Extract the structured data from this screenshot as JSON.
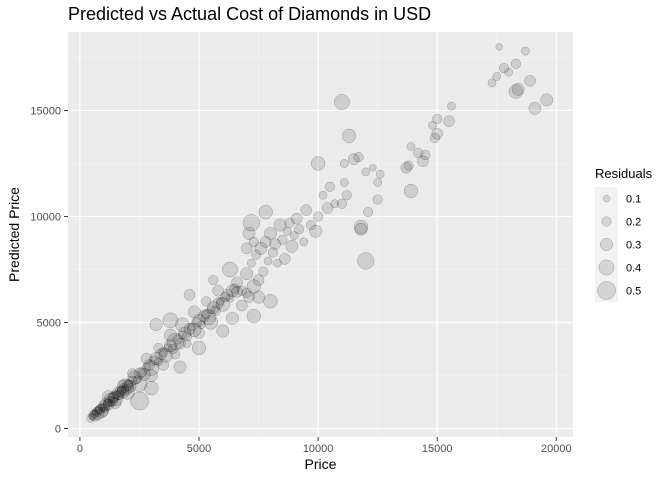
{
  "chart_data": {
    "type": "scatter",
    "title": "Predicted vs Actual Cost of Diamonds in USD",
    "xlabel": "Price",
    "ylabel": "Predicted Price",
    "xlim": [
      -500,
      20700
    ],
    "ylim": [
      -400,
      18700
    ],
    "x_ticks": [
      0,
      5000,
      10000,
      15000,
      20000
    ],
    "y_ticks": [
      0,
      5000,
      10000,
      15000
    ],
    "x_tick_labels": [
      "0",
      "5000",
      "10000",
      "15000",
      "20000"
    ],
    "y_tick_labels": [
      "0",
      "5000",
      "10000",
      "15000"
    ],
    "grid": true,
    "legend": {
      "title": "Residuals",
      "position": "right",
      "entries": [
        {
          "label": "0.1",
          "value": 0.1
        },
        {
          "label": "0.2",
          "value": 0.2
        },
        {
          "label": "0.3",
          "value": 0.3
        },
        {
          "label": "0.4",
          "value": 0.4
        },
        {
          "label": "0.5",
          "value": 0.5
        }
      ]
    },
    "point_color": "#000000",
    "point_alpha": 0.12,
    "points": [
      [
        450,
        480,
        0.15
      ],
      [
        520,
        560,
        0.1
      ],
      [
        560,
        620,
        0.2
      ],
      [
        600,
        700,
        0.15
      ],
      [
        640,
        600,
        0.25
      ],
      [
        680,
        750,
        0.1
      ],
      [
        720,
        800,
        0.2
      ],
      [
        760,
        700,
        0.3
      ],
      [
        800,
        880,
        0.15
      ],
      [
        850,
        900,
        0.2
      ],
      [
        900,
        820,
        0.35
      ],
      [
        950,
        1000,
        0.15
      ],
      [
        1000,
        1050,
        0.25
      ],
      [
        1050,
        980,
        0.2
      ],
      [
        1100,
        1150,
        0.3
      ],
      [
        1150,
        1200,
        0.15
      ],
      [
        1200,
        1120,
        0.25
      ],
      [
        1250,
        1300,
        0.2
      ],
      [
        1300,
        1350,
        0.35
      ],
      [
        1350,
        1280,
        0.15
      ],
      [
        1400,
        1450,
        0.25
      ],
      [
        1450,
        1500,
        0.2
      ],
      [
        1500,
        1420,
        0.4
      ],
      [
        1550,
        1600,
        0.15
      ],
      [
        1600,
        1650,
        0.3
      ],
      [
        1650,
        1580,
        0.2
      ],
      [
        1700,
        1750,
        0.25
      ],
      [
        1750,
        1800,
        0.15
      ],
      [
        1800,
        1720,
        0.3
      ],
      [
        1850,
        1900,
        0.2
      ],
      [
        1900,
        1950,
        0.45
      ],
      [
        1950,
        1880,
        0.2
      ],
      [
        2000,
        2050,
        0.25
      ],
      [
        2050,
        2100,
        0.15
      ],
      [
        2100,
        2000,
        0.3
      ],
      [
        2200,
        2250,
        0.2
      ],
      [
        2300,
        2400,
        0.35
      ],
      [
        2400,
        2300,
        0.15
      ],
      [
        2500,
        2600,
        0.25
      ],
      [
        2600,
        2650,
        0.2
      ],
      [
        2700,
        2550,
        0.3
      ],
      [
        2800,
        2900,
        0.15
      ],
      [
        2900,
        3000,
        0.25
      ],
      [
        3000,
        2850,
        0.4
      ],
      [
        3100,
        3200,
        0.2
      ],
      [
        3200,
        3300,
        0.3
      ],
      [
        3300,
        3150,
        0.15
      ],
      [
        3400,
        3500,
        0.25
      ],
      [
        3500,
        3600,
        0.2
      ],
      [
        3600,
        3450,
        0.35
      ],
      [
        3700,
        3800,
        0.15
      ],
      [
        3800,
        3900,
        0.3
      ],
      [
        3900,
        3750,
        0.2
      ],
      [
        4000,
        4100,
        0.45
      ],
      [
        4100,
        4200,
        0.2
      ],
      [
        4200,
        4000,
        0.25
      ],
      [
        4300,
        4400,
        0.15
      ],
      [
        4400,
        4500,
        0.3
      ],
      [
        4500,
        4350,
        0.2
      ],
      [
        4600,
        4700,
        0.25
      ],
      [
        4700,
        4800,
        0.15
      ],
      [
        4800,
        4650,
        0.35
      ],
      [
        4900,
        5000,
        0.2
      ],
      [
        5000,
        5100,
        0.3
      ],
      [
        5100,
        4900,
        0.15
      ],
      [
        5200,
        5300,
        0.25
      ],
      [
        5300,
        5400,
        0.2
      ],
      [
        5400,
        5250,
        0.4
      ],
      [
        5500,
        5600,
        0.15
      ],
      [
        5600,
        5700,
        0.3
      ],
      [
        5700,
        5550,
        0.2
      ],
      [
        5800,
        5900,
        0.25
      ],
      [
        5900,
        6000,
        0.15
      ],
      [
        6000,
        5850,
        0.35
      ],
      [
        6100,
        6200,
        0.2
      ],
      [
        6200,
        6300,
        0.25
      ],
      [
        6300,
        6150,
        0.15
      ],
      [
        6400,
        6500,
        0.3
      ],
      [
        6500,
        6600,
        0.2
      ],
      [
        6600,
        6450,
        0.25
      ],
      [
        1000,
        800,
        0.2
      ],
      [
        1200,
        1500,
        0.3
      ],
      [
        1500,
        1200,
        0.25
      ],
      [
        1800,
        2100,
        0.15
      ],
      [
        2000,
        1700,
        0.35
      ],
      [
        2200,
        2600,
        0.2
      ],
      [
        2500,
        2100,
        0.4
      ],
      [
        2800,
        3300,
        0.25
      ],
      [
        3000,
        2500,
        0.3
      ],
      [
        3300,
        3800,
        0.2
      ],
      [
        3500,
        3000,
        0.25
      ],
      [
        3800,
        4400,
        0.3
      ],
      [
        4000,
        3500,
        0.2
      ],
      [
        4300,
        4900,
        0.35
      ],
      [
        4500,
        4000,
        0.15
      ],
      [
        4800,
        5500,
        0.3
      ],
      [
        5000,
        4500,
        0.25
      ],
      [
        5300,
        6000,
        0.2
      ],
      [
        5500,
        5000,
        0.35
      ],
      [
        5800,
        6500,
        0.25
      ],
      [
        2500,
        1300,
        0.5
      ],
      [
        3000,
        1900,
        0.35
      ],
      [
        3200,
        4900,
        0.3
      ],
      [
        3800,
        5100,
        0.4
      ],
      [
        4200,
        2900,
        0.3
      ],
      [
        4600,
        6300,
        0.25
      ],
      [
        5000,
        3800,
        0.35
      ],
      [
        5600,
        7000,
        0.2
      ],
      [
        6000,
        4600,
        0.3
      ],
      [
        6300,
        7500,
        0.4
      ],
      [
        6400,
        5200,
        0.3
      ],
      [
        6600,
        6900,
        0.25
      ],
      [
        6800,
        6500,
        0.2
      ],
      [
        7000,
        7300,
        0.3
      ],
      [
        7100,
        6200,
        0.25
      ],
      [
        7200,
        7800,
        0.15
      ],
      [
        7300,
        6700,
        0.35
      ],
      [
        7400,
        8200,
        0.2
      ],
      [
        7500,
        7000,
        0.25
      ],
      [
        7600,
        8500,
        0.3
      ],
      [
        7700,
        7400,
        0.2
      ],
      [
        7800,
        8800,
        0.25
      ],
      [
        7900,
        7900,
        0.15
      ],
      [
        8000,
        9200,
        0.3
      ],
      [
        8100,
        8300,
        0.2
      ],
      [
        8200,
        8700,
        0.25
      ],
      [
        8300,
        7800,
        0.15
      ],
      [
        8400,
        9600,
        0.3
      ],
      [
        8500,
        8900,
        0.2
      ],
      [
        8600,
        8000,
        0.25
      ],
      [
        8700,
        9300,
        0.15
      ],
      [
        8800,
        9700,
        0.2
      ],
      [
        8900,
        8600,
        0.3
      ],
      [
        9000,
        9100,
        0.15
      ],
      [
        9100,
        9900,
        0.25
      ],
      [
        9200,
        9400,
        0.2
      ],
      [
        9400,
        8800,
        0.15
      ],
      [
        9500,
        10300,
        0.25
      ],
      [
        9700,
        9600,
        0.2
      ],
      [
        9900,
        9300,
        0.3
      ],
      [
        7200,
        9700,
        0.45
      ],
      [
        7300,
        5300,
        0.35
      ],
      [
        7500,
        6200,
        0.3
      ],
      [
        7800,
        10200,
        0.35
      ],
      [
        8000,
        6000,
        0.35
      ],
      [
        7000,
        6400,
        0.2
      ],
      [
        6800,
        5800,
        0.25
      ],
      [
        7000,
        8500,
        0.25
      ],
      [
        7100,
        9200,
        0.3
      ],
      [
        7300,
        8800,
        0.2
      ],
      [
        10000,
        10000,
        0.2
      ],
      [
        10200,
        11000,
        0.15
      ],
      [
        10400,
        10400,
        0.25
      ],
      [
        10500,
        11400,
        0.2
      ],
      [
        10700,
        10600,
        0.15
      ],
      [
        11000,
        10600,
        0.2
      ],
      [
        11100,
        11600,
        0.15
      ],
      [
        11200,
        11000,
        0.2
      ],
      [
        11100,
        12500,
        0.15
      ],
      [
        10000,
        12500,
        0.35
      ],
      [
        11000,
        15400,
        0.4
      ],
      [
        11300,
        13800,
        0.35
      ],
      [
        11500,
        12700,
        0.25
      ],
      [
        11700,
        12800,
        0.2
      ],
      [
        11800,
        9500,
        0.35
      ],
      [
        12000,
        7900,
        0.45
      ],
      [
        12000,
        12100,
        0.15
      ],
      [
        12300,
        12300,
        0.1
      ],
      [
        12500,
        11600,
        0.15
      ],
      [
        12600,
        12000,
        0.15
      ],
      [
        12500,
        10800,
        0.2
      ],
      [
        12100,
        10200,
        0.2
      ],
      [
        11800,
        9400,
        0.3
      ],
      [
        13700,
        12300,
        0.25
      ],
      [
        13900,
        11200,
        0.35
      ],
      [
        13900,
        13300,
        0.15
      ],
      [
        14200,
        13000,
        0.2
      ],
      [
        14400,
        12600,
        0.25
      ],
      [
        14500,
        12900,
        0.2
      ],
      [
        14800,
        14300,
        0.15
      ],
      [
        15000,
        14600,
        0.2
      ],
      [
        15500,
        14500,
        0.25
      ],
      [
        15600,
        15200,
        0.15
      ],
      [
        14900,
        13700,
        0.2
      ],
      [
        15000,
        13900,
        0.25
      ],
      [
        13800,
        12400,
        0.2
      ],
      [
        17300,
        16300,
        0.15
      ],
      [
        17500,
        16600,
        0.15
      ],
      [
        17600,
        18000,
        0.1
      ],
      [
        17800,
        17000,
        0.2
      ],
      [
        18000,
        16800,
        0.15
      ],
      [
        18300,
        17200,
        0.2
      ],
      [
        18400,
        16000,
        0.3
      ],
      [
        18300,
        15900,
        0.35
      ],
      [
        18700,
        17800,
        0.15
      ],
      [
        18900,
        16400,
        0.25
      ],
      [
        19100,
        15100,
        0.3
      ],
      [
        19600,
        15500,
        0.3
      ]
    ]
  }
}
